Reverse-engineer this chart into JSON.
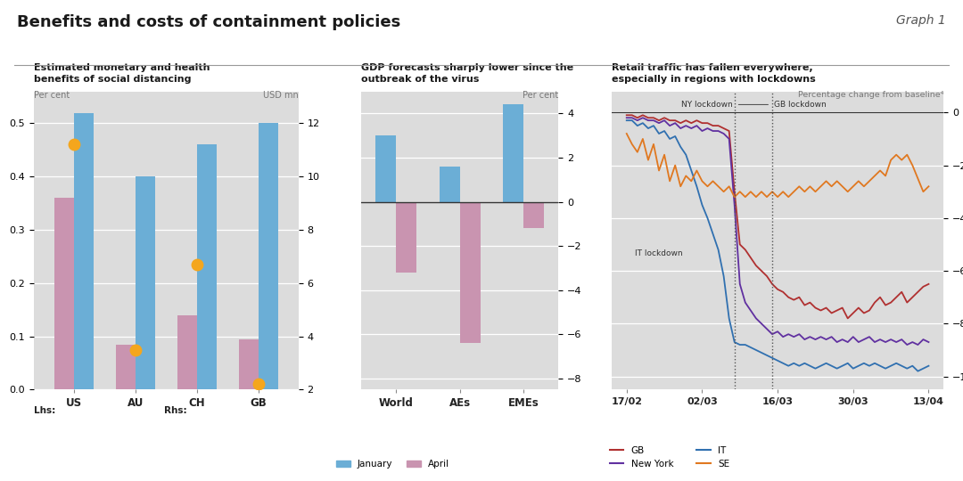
{
  "title": "Benefits and costs of containment policies",
  "graph_label": "Graph 1",
  "panel1": {
    "title": "Estimated monetary and health\nbenefits of social distancing",
    "ylabel_left": "Per cent",
    "ylabel_right": "USD mn",
    "categories": [
      "US",
      "AU",
      "CH",
      "GB"
    ],
    "lives_saved": [
      0.52,
      0.4,
      0.46,
      0.5
    ],
    "monetary_value": [
      0.36,
      0.085,
      0.14,
      0.095
    ],
    "stat_life_value": [
      0.46,
      0.075,
      0.235,
      0.01
    ],
    "ylim_left": [
      0.0,
      0.56
    ],
    "yticks_left": [
      0.0,
      0.1,
      0.2,
      0.3,
      0.4,
      0.5
    ],
    "yticks_right": [
      2,
      4,
      6,
      8,
      10,
      12
    ],
    "bar_blue": "#6baed6",
    "bar_pink": "#c994b0",
    "dot_orange": "#f4a61d"
  },
  "panel2": {
    "title": "GDP forecasts sharply lower since the\noutbreak of the virus",
    "ylabel_right": "Per cent",
    "categories": [
      "World",
      "AEs",
      "EMEs"
    ],
    "january": [
      3.0,
      1.6,
      4.4
    ],
    "april": [
      -3.2,
      -6.4,
      -1.2
    ],
    "ylim": [
      -8.5,
      5.0
    ],
    "yticks": [
      -8,
      -6,
      -4,
      -2,
      0,
      2,
      4
    ],
    "bar_blue": "#6baed6",
    "bar_pink": "#c994b0"
  },
  "panel3": {
    "title": "Retail traffic has fallen everywhere,\nespecially in regions with lockdowns",
    "ylabel": "Percentage change from baseline⁴",
    "ylim": [
      -105,
      8
    ],
    "yticks": [
      0,
      -20,
      -40,
      -60,
      -80,
      -100
    ],
    "x_labels": [
      "17/02",
      "02/03",
      "16/03",
      "30/03",
      "13/04"
    ],
    "ny_lockdown_idx": 20,
    "gb_lockdown_idx": 27,
    "n_points": 57,
    "color_GB": "#b03030",
    "color_NY": "#6030a0",
    "color_IT": "#3070b0",
    "color_SE": "#e07820",
    "GB_data": [
      -1,
      -1,
      -2,
      -1,
      -2,
      -2,
      -3,
      -2,
      -3,
      -3,
      -4,
      -3,
      -4,
      -3,
      -4,
      -4,
      -5,
      -5,
      -6,
      -7,
      -30,
      -50,
      -52,
      -55,
      -58,
      -60,
      -62,
      -65,
      -67,
      -68,
      -70,
      -71,
      -70,
      -73,
      -72,
      -74,
      -75,
      -74,
      -76,
      -75,
      -74,
      -78,
      -76,
      -74,
      -76,
      -75,
      -72,
      -70,
      -73,
      -72,
      -70,
      -68,
      -72,
      -70,
      -68,
      -66,
      -65
    ],
    "NY_data": [
      -2,
      -2,
      -3,
      -2,
      -3,
      -3,
      -4,
      -3,
      -5,
      -4,
      -6,
      -5,
      -6,
      -5,
      -7,
      -6,
      -7,
      -7,
      -8,
      -10,
      -35,
      -65,
      -72,
      -75,
      -78,
      -80,
      -82,
      -84,
      -83,
      -85,
      -84,
      -85,
      -84,
      -86,
      -85,
      -86,
      -85,
      -86,
      -85,
      -87,
      -86,
      -87,
      -85,
      -87,
      -86,
      -85,
      -87,
      -86,
      -87,
      -86,
      -87,
      -86,
      -88,
      -87,
      -88,
      -86,
      -87
    ],
    "IT_data": [
      -3,
      -3,
      -5,
      -4,
      -6,
      -5,
      -8,
      -7,
      -10,
      -9,
      -13,
      -16,
      -22,
      -28,
      -35,
      -40,
      -46,
      -52,
      -62,
      -78,
      -87,
      -88,
      -88,
      -89,
      -90,
      -91,
      -92,
      -93,
      -94,
      -95,
      -96,
      -95,
      -96,
      -95,
      -96,
      -97,
      -96,
      -95,
      -96,
      -97,
      -96,
      -95,
      -97,
      -96,
      -95,
      -96,
      -95,
      -96,
      -97,
      -96,
      -95,
      -96,
      -97,
      -96,
      -98,
      -97,
      -96
    ],
    "SE_data": [
      -8,
      -12,
      -15,
      -10,
      -18,
      -12,
      -22,
      -16,
      -26,
      -20,
      -28,
      -24,
      -26,
      -22,
      -26,
      -28,
      -26,
      -28,
      -30,
      -28,
      -32,
      -30,
      -32,
      -30,
      -32,
      -30,
      -32,
      -30,
      -32,
      -30,
      -32,
      -30,
      -28,
      -30,
      -28,
      -30,
      -28,
      -26,
      -28,
      -26,
      -28,
      -30,
      -28,
      -26,
      -28,
      -26,
      -24,
      -22,
      -24,
      -18,
      -16,
      -18,
      -16,
      -20,
      -25,
      -30,
      -28
    ]
  }
}
